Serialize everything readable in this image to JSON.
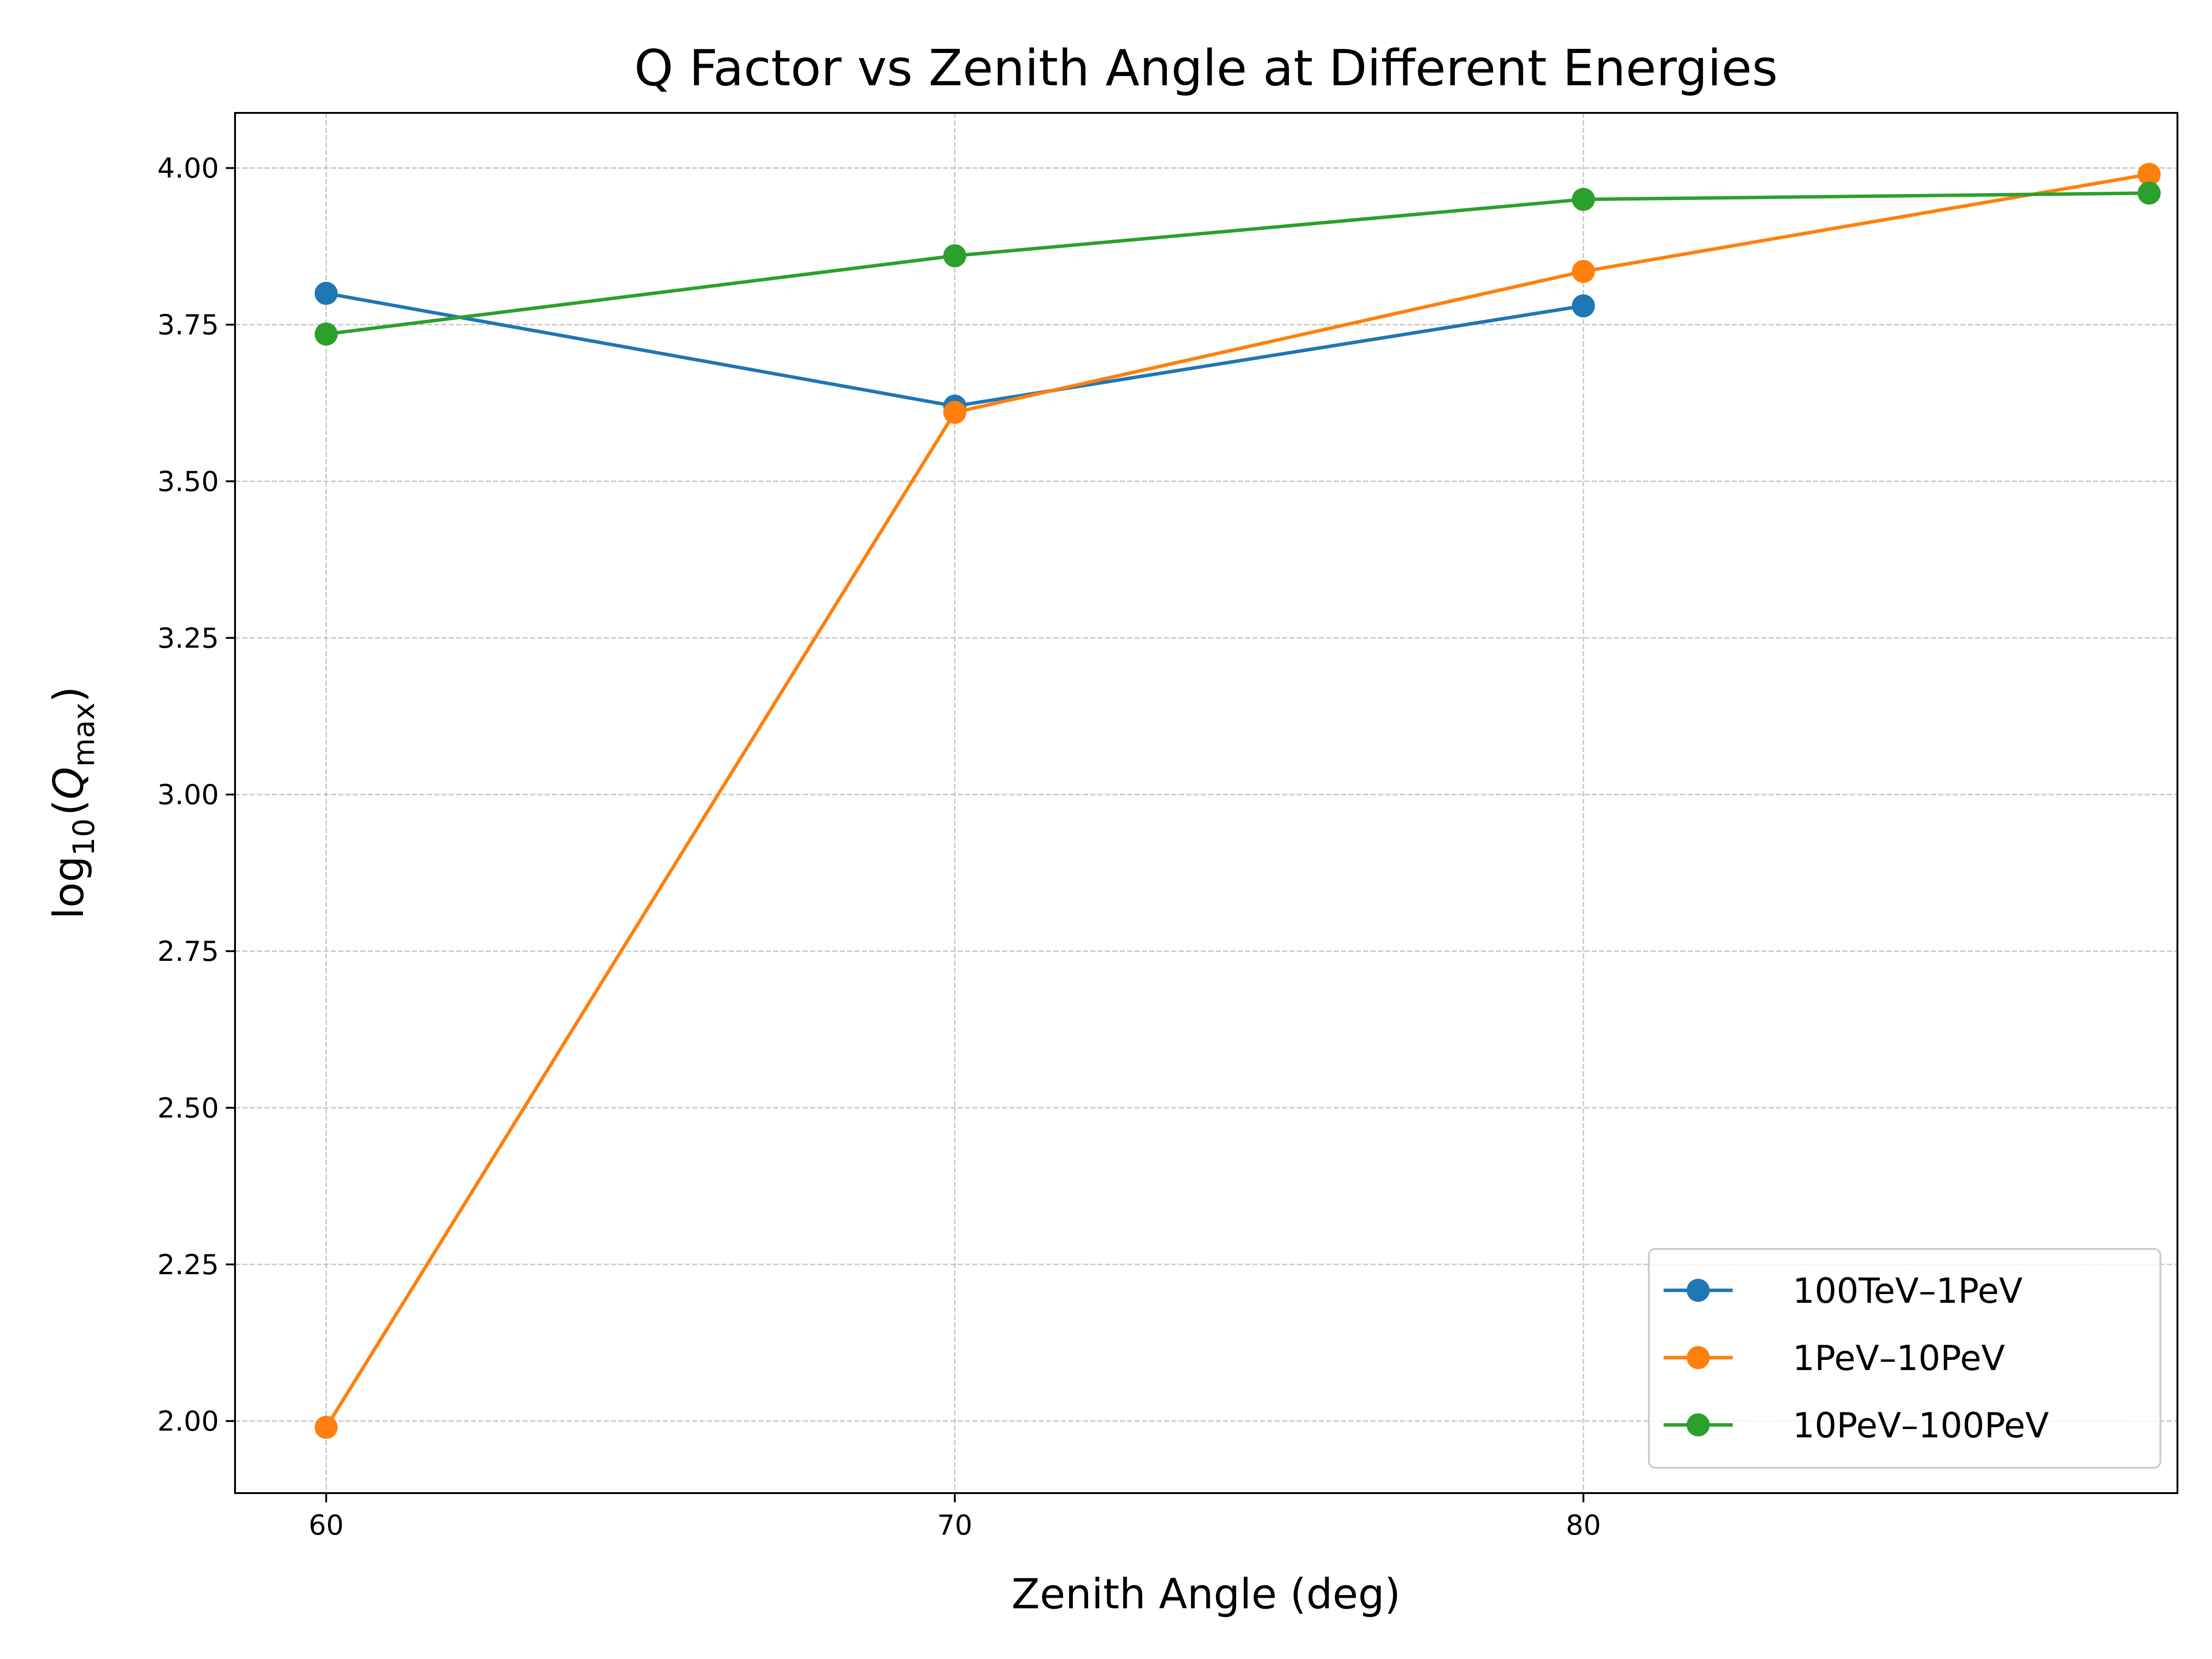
{
  "chart_data": {
    "type": "line",
    "title": "Q Factor vs Zenith Angle at Different Energies",
    "xlabel": "Zenith Angle (deg)",
    "ylabel": {
      "prefix": "log",
      "sub": "10",
      "open": "(",
      "var": "Q",
      "var_sub": "max",
      "close": ")"
    },
    "xlim": [
      58.55,
      89.45
    ],
    "ylim": [
      1.885,
      4.088
    ],
    "xticks": [
      "60",
      "70",
      "80"
    ],
    "xtick_values": [
      60,
      70,
      80
    ],
    "yticks": [
      "2.00",
      "2.25",
      "2.50",
      "2.75",
      "3.00",
      "3.25",
      "3.50",
      "3.75",
      "4.00"
    ],
    "ytick_values": [
      2.0,
      2.25,
      2.5,
      2.75,
      3.0,
      3.25,
      3.5,
      3.75,
      4.0
    ],
    "grid": true,
    "legend_position": "lower-right",
    "series": [
      {
        "name": "100TeV–1PeV",
        "color": "#1f77b4",
        "x": [
          60,
          70,
          80
        ],
        "y": [
          3.8,
          3.62,
          3.78
        ]
      },
      {
        "name": "1PeV–10PeV",
        "color": "#ff7f0e",
        "x": [
          60,
          70,
          80,
          89
        ],
        "y": [
          1.99,
          3.61,
          3.835,
          3.99
        ]
      },
      {
        "name": "10PeV–100PeV",
        "color": "#2ca02c",
        "x": [
          60,
          70,
          80,
          89
        ],
        "y": [
          3.735,
          3.86,
          3.95,
          3.96
        ]
      }
    ]
  }
}
